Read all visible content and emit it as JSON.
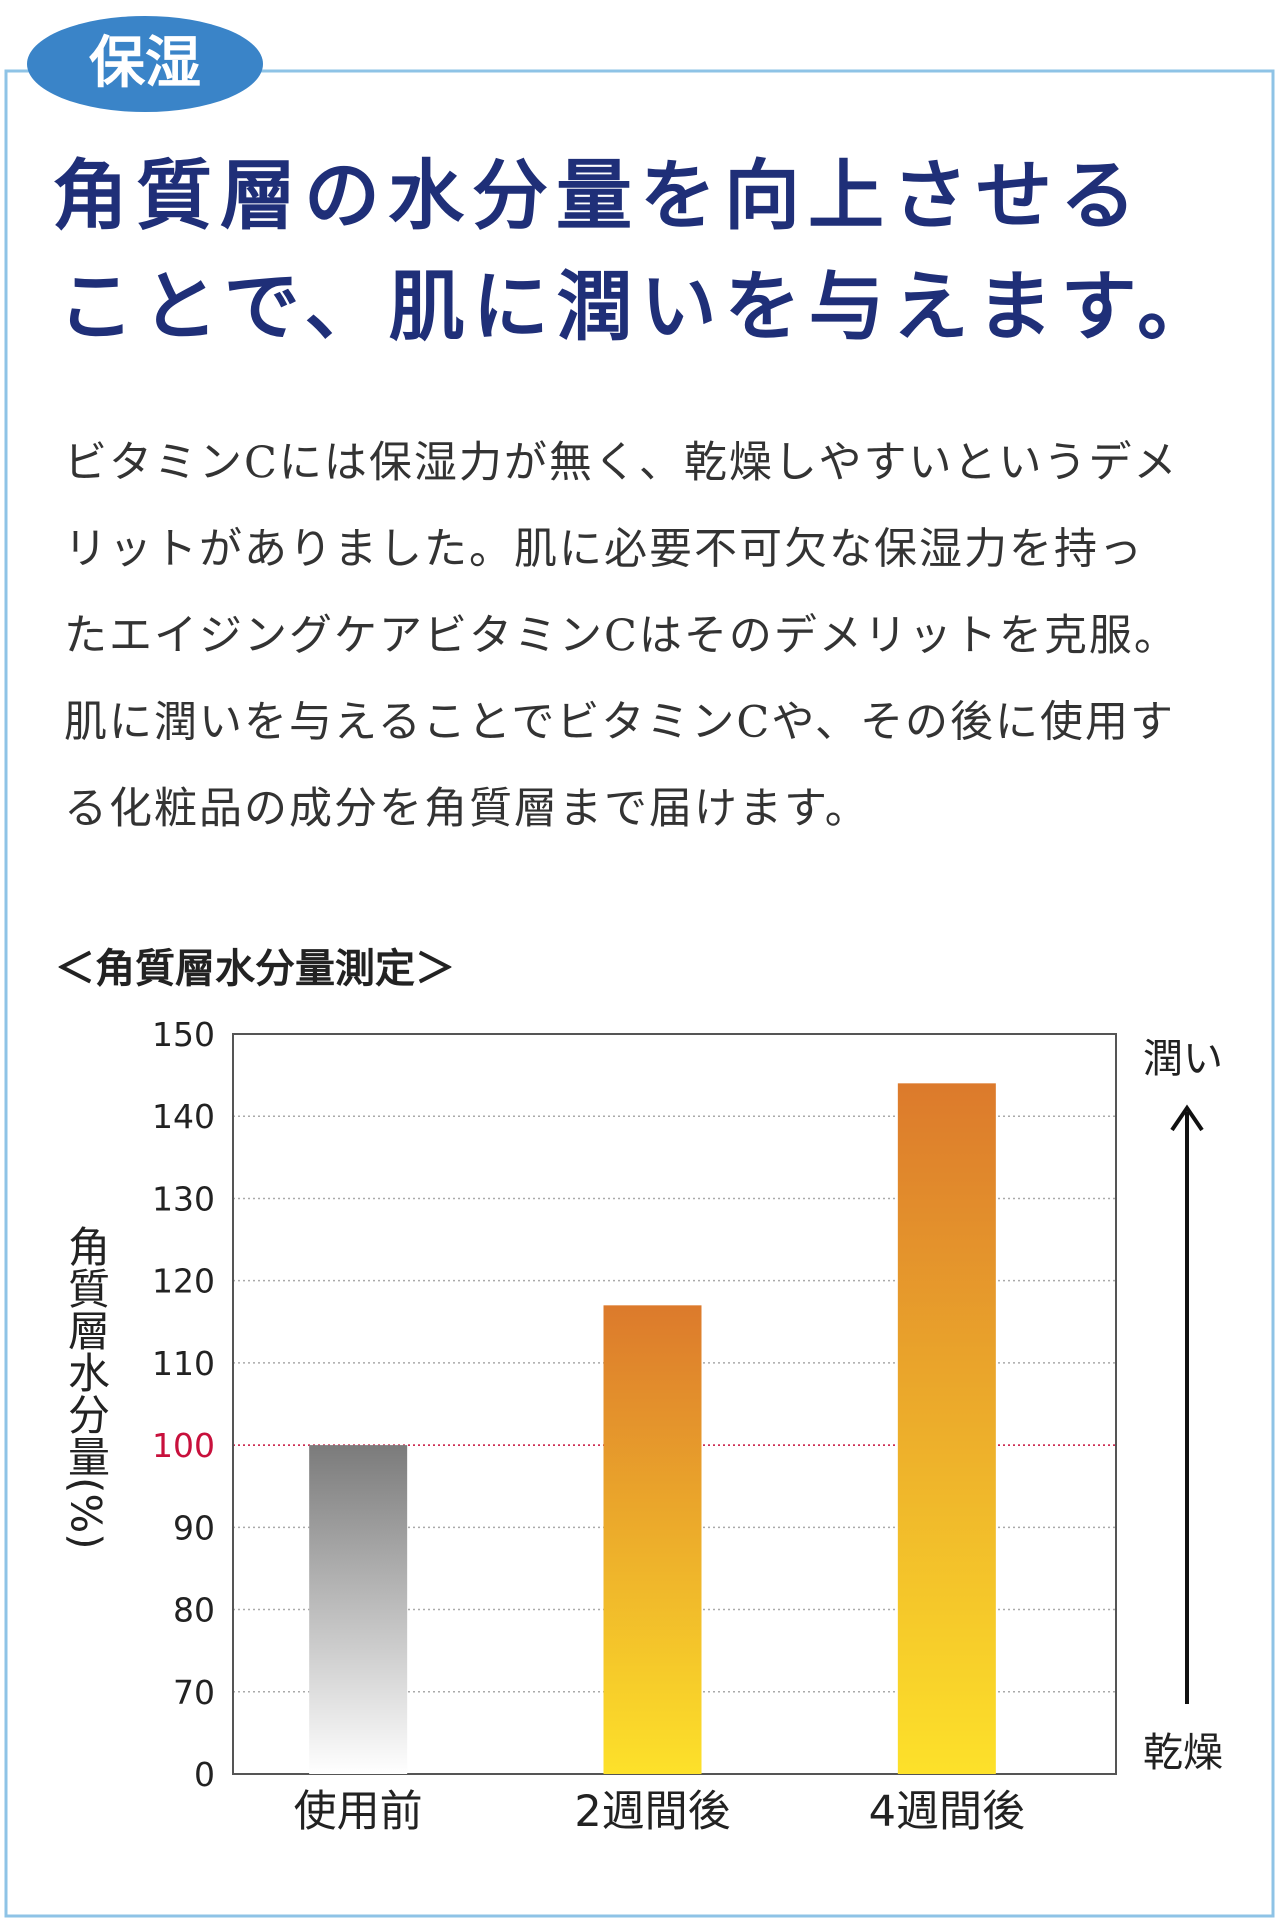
{
  "badge": "保湿",
  "headline": [
    "角質層の水分量を向上させる",
    "ことで、肌に潤いを与えます。"
  ],
  "body": [
    "ビタミンCには保湿力が無く、乾燥しやすいというデメ",
    "リットがありました。肌に必要不可欠な保湿力を持っ",
    "たエイジングケアビタミンCはそのデメリットを克服。",
    "肌に潤いを与えることでビタミンCや、その後に使用す",
    "る化粧品の成分を角質層まで届けます。"
  ],
  "chart_data": {
    "type": "bar",
    "title": "＜角質層水分量測定＞",
    "y_label": "角質層水分量(%)",
    "categories": [
      "使用前",
      "2週間後",
      "4週間後"
    ],
    "values": [
      100,
      117,
      144
    ],
    "colors": [
      [
        "#7b7b7b",
        "#ffffff"
      ],
      [
        "#dc7a2c",
        "#fde12a"
      ],
      [
        "#dc7a2c",
        "#fde12a"
      ]
    ],
    "ylim": [
      0,
      150
    ],
    "yticks": [
      0,
      70,
      80,
      90,
      100,
      110,
      120,
      130,
      140,
      150
    ],
    "grid": true,
    "reference_line": {
      "value": 100,
      "color": "#c8103c"
    },
    "arrow_top_label": "潤い",
    "arrow_bottom_label": "乾燥"
  }
}
